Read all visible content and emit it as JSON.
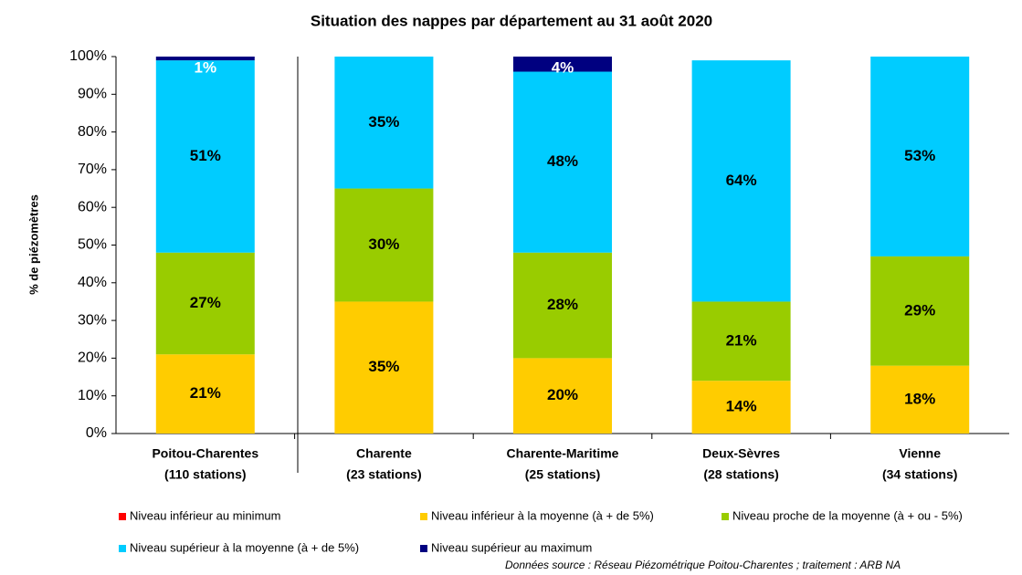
{
  "chart_data": {
    "type": "stacked_bar",
    "title": "Situation des nappes par département au 31 août 2020",
    "y_label": "% de piézomètres",
    "source": "Données source : Réseau Piézométrique Poitou-Charentes ; traitement : ARB NA",
    "categories": [
      [
        "Poitou-Charentes",
        "(110 stations)"
      ],
      [
        "Charente",
        "(23 stations)"
      ],
      [
        "Charente-Maritime",
        "(25 stations)"
      ],
      [
        "Deux-Sèvres",
        "(28 stations)"
      ],
      [
        "Vienne",
        "(34 stations)"
      ]
    ],
    "series": [
      {
        "name": "Niveau inférieur au minimum",
        "color": "#ff0000",
        "values": [
          0,
          0,
          0,
          0,
          0
        ]
      },
      {
        "name": "Niveau inférieur à la moyenne (à + de 5%)",
        "color": "#ffcc00",
        "values": [
          21,
          35,
          20,
          14,
          18
        ],
        "value_labels": [
          "21%",
          "35%",
          "20%",
          "14%",
          "18%"
        ]
      },
      {
        "name": "Niveau proche de la moyenne (à + ou - 5%)",
        "color": "#99cc00",
        "values": [
          27,
          30,
          28,
          21,
          29
        ],
        "value_labels": [
          "27%",
          "30%",
          "28%",
          "21%",
          "29%"
        ]
      },
      {
        "name": "Niveau supérieur à la moyenne (à + de  5%)",
        "color": "#00ccff",
        "values": [
          51,
          35,
          48,
          64,
          53
        ],
        "value_labels": [
          "51%",
          "35%",
          "48%",
          "64%",
          "53%"
        ]
      },
      {
        "name": "Niveau supérieur au maximum",
        "color": "#000080",
        "values": [
          1,
          0,
          4,
          0,
          0
        ],
        "value_labels": [
          "1%",
          null,
          "4%",
          null,
          null
        ]
      }
    ],
    "ylim": [
      0,
      100
    ],
    "yticks": [
      {
        "value": 0,
        "label": "0%"
      },
      {
        "value": 10,
        "label": "10%"
      },
      {
        "value": 20,
        "label": "20%"
      },
      {
        "value": 30,
        "label": "30%"
      },
      {
        "value": 40,
        "label": "40%"
      },
      {
        "value": 50,
        "label": "50%"
      },
      {
        "value": 60,
        "label": "60%"
      },
      {
        "value": 70,
        "label": "70%"
      },
      {
        "value": 80,
        "label": "80%"
      },
      {
        "value": 90,
        "label": "90%"
      },
      {
        "value": 100,
        "label": "100%"
      }
    ],
    "grid": false
  }
}
